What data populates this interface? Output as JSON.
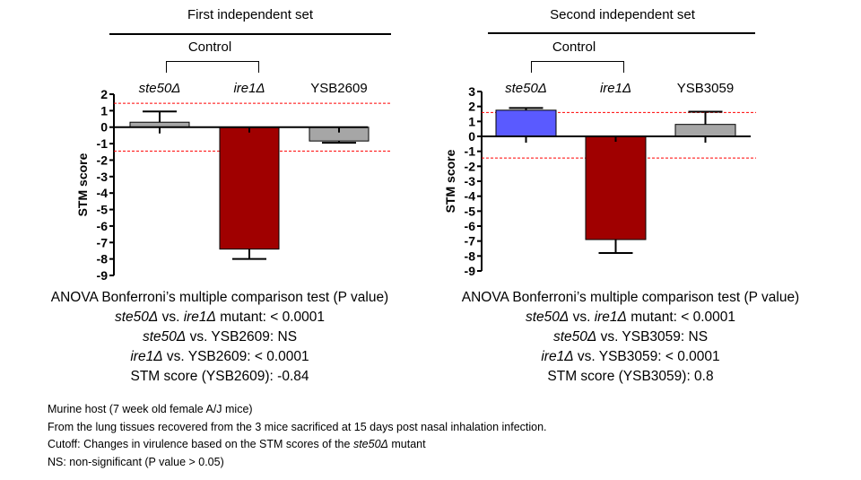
{
  "notes": [
    {
      "parts": [
        {
          "t": "Murine host (7 week old female A/J mice)",
          "i": false
        }
      ]
    },
    {
      "parts": [
        {
          "t": "From  the lung tissues recovered from the 3 mice sacrificed at 15 days post nasal inhalation infection.",
          "i": false
        }
      ]
    },
    {
      "parts": [
        {
          "t": "Cutoff: Changes in virulence based on the STM scores of the ",
          "i": false
        },
        {
          "t": "ste50Δ",
          "i": true
        },
        {
          "t": " mutant",
          "i": false
        }
      ]
    },
    {
      "parts": [
        {
          "t": "NS: non-significant (P value > 0.05)",
          "i": false
        }
      ]
    }
  ],
  "chart_data": [
    {
      "type": "bar",
      "title": "First independent set",
      "control_label": "Control",
      "categories": [
        "ste50Δ",
        "ire1Δ",
        "YSB2609"
      ],
      "categories_italic": [
        true,
        true,
        false
      ],
      "values": [
        0.3,
        -7.4,
        -0.84
      ],
      "error_upper": [
        0.95,
        -0.05,
        -0.15
      ],
      "error_lower": [
        -0.35,
        -8.0,
        -0.95
      ],
      "colors": [
        "#a6a6a6",
        "#a00000",
        "#a6a6a6"
      ],
      "cutoff_lines": [
        1.45,
        -1.45
      ],
      "cutoff_color": "#ff0000",
      "ylabel": "STM score",
      "ylim": [
        -9,
        2
      ],
      "yticks": [
        2,
        1,
        0,
        -1,
        -2,
        -3,
        -4,
        -5,
        -6,
        -7,
        -8,
        -9
      ],
      "stats": {
        "header": "ANOVA Bonferroni’s multiple comparison test (P value)",
        "lines": [
          [
            {
              "t": "ste50Δ",
              "i": true
            },
            {
              "t": " vs. ",
              "i": false
            },
            {
              "t": "ire1Δ",
              "i": true
            },
            {
              "t": " mutant: < 0.0001",
              "i": false
            }
          ],
          [
            {
              "t": "ste50Δ",
              "i": true
            },
            {
              "t": " vs. YSB2609: NS",
              "i": false
            }
          ],
          [
            {
              "t": "ire1Δ",
              "i": true
            },
            {
              "t": " vs. YSB2609: < 0.0001",
              "i": false
            }
          ],
          [
            {
              "t": "STM score (YSB2609): -0.84",
              "i": false
            }
          ]
        ]
      }
    },
    {
      "type": "bar",
      "title": "Second independent set",
      "control_label": "Control",
      "categories": [
        "ste50Δ",
        "ire1Δ",
        "YSB3059"
      ],
      "categories_italic": [
        true,
        true,
        false
      ],
      "values": [
        1.75,
        -6.9,
        0.8
      ],
      "error_upper": [
        1.9,
        -0.05,
        1.65
      ],
      "error_lower": [
        -0.35,
        -7.8,
        -0.35
      ],
      "colors": [
        "#5a5aff",
        "#a00000",
        "#a6a6a6"
      ],
      "cutoff_lines": [
        1.6,
        -1.45
      ],
      "cutoff_color": "#ff0000",
      "ylabel": "STM score",
      "ylim": [
        -9,
        3
      ],
      "yticks": [
        3,
        2,
        1,
        0,
        -1,
        -2,
        -3,
        -4,
        -5,
        -6,
        -7,
        -8,
        -9
      ],
      "stats": {
        "header": "ANOVA Bonferroni’s multiple comparison test (P value)",
        "lines": [
          [
            {
              "t": "ste50Δ",
              "i": true
            },
            {
              "t": " vs. ",
              "i": false
            },
            {
              "t": "ire1Δ",
              "i": true
            },
            {
              "t": " mutant: < 0.0001",
              "i": false
            }
          ],
          [
            {
              "t": "ste50Δ",
              "i": true
            },
            {
              "t": " vs. YSB3059: NS",
              "i": false
            }
          ],
          [
            {
              "t": "ire1Δ",
              "i": true
            },
            {
              "t": " vs. YSB3059: < 0.0001",
              "i": false
            }
          ],
          [
            {
              "t": "STM score (YSB3059): 0.8",
              "i": false
            }
          ]
        ]
      }
    }
  ]
}
